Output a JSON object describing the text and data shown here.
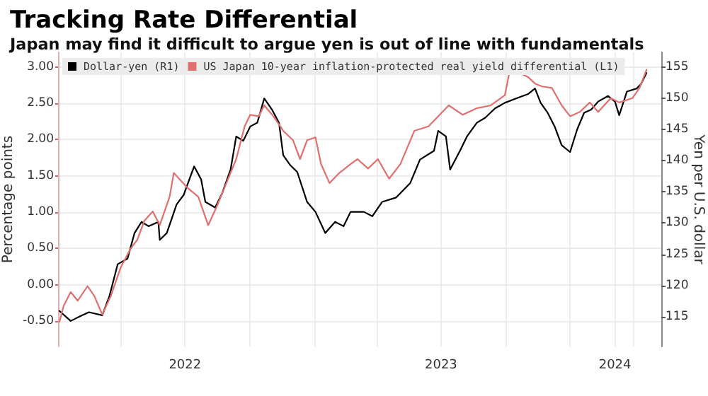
{
  "chart_data": {
    "type": "line",
    "title": "Tracking Rate Differential",
    "subtitle": "Japan may find it difficult to argue yen is out of line with fundamentals",
    "ylabel": "Percentage points",
    "y2label": "Yen per U.S. dollar",
    "xlim": [
      "2022-01-01",
      "2024-05-10"
    ],
    "xticks": [
      {
        "value": "2022-04-01",
        "label": null
      },
      {
        "value": "2022-07-01",
        "label": "2022"
      },
      {
        "value": "2022-10-01",
        "label": null
      },
      {
        "value": "2023-01-01",
        "label": null
      },
      {
        "value": "2023-04-01",
        "label": null
      },
      {
        "value": "2023-07-01",
        "label": "2023"
      },
      {
        "value": "2023-10-01",
        "label": null
      },
      {
        "value": "2024-01-01",
        "label": null
      },
      {
        "value": "2024-03-05",
        "label": "2024"
      },
      {
        "value": "2024-04-01",
        "label": null
      }
    ],
    "ylim": [
      -0.85,
      3.2
    ],
    "yticks": [
      {
        "value": -0.5,
        "label": "-0.50"
      },
      {
        "value": 0,
        "label": "0.00"
      },
      {
        "value": 0.5,
        "label": "0.50"
      },
      {
        "value": 1,
        "label": "1.00"
      },
      {
        "value": 1.5,
        "label": "1.50"
      },
      {
        "value": 2,
        "label": "2.00"
      },
      {
        "value": 2.5,
        "label": "2.50"
      },
      {
        "value": 3,
        "label": "3.00"
      }
    ],
    "y2lim": [
      110.2,
      157.4
    ],
    "y2ticks": [
      115,
      120,
      125,
      130,
      135,
      140,
      145,
      150,
      155
    ],
    "grid": true,
    "legend": "top left",
    "marker": "none",
    "line_style": "solid",
    "series": [
      {
        "name": "Dollar-yen (R1)",
        "color": "#000000",
        "axis": "y2",
        "x": [
          "2022-01-03",
          "2022-01-19",
          "2022-02-04",
          "2022-02-14",
          "2022-03-05",
          "2022-03-15",
          "2022-03-27",
          "2022-04-10",
          "2022-04-20",
          "2022-04-30",
          "2022-05-10",
          "2022-05-24",
          "2022-05-26",
          "2022-06-05",
          "2022-06-19",
          "2022-06-29",
          "2022-07-14",
          "2022-07-24",
          "2022-07-30",
          "2022-08-13",
          "2022-08-23",
          "2022-09-04",
          "2022-09-12",
          "2022-09-22",
          "2022-10-02",
          "2022-10-12",
          "2022-10-22",
          "2022-11-02",
          "2022-11-12",
          "2022-11-18",
          "2022-11-28",
          "2022-12-08",
          "2022-12-22",
          "2023-01-03",
          "2023-01-17",
          "2023-01-31",
          "2023-02-12",
          "2023-02-22",
          "2023-03-13",
          "2023-03-25",
          "2023-04-08",
          "2023-04-28",
          "2023-05-18",
          "2023-06-01",
          "2023-06-21",
          "2023-06-27",
          "2023-07-08",
          "2023-07-14",
          "2023-07-28",
          "2023-08-07",
          "2023-08-21",
          "2023-09-02",
          "2023-09-16",
          "2023-09-30",
          "2023-10-16",
          "2023-11-02",
          "2023-11-12",
          "2023-11-20",
          "2023-11-30",
          "2023-12-10",
          "2023-12-20",
          "2024-01-01",
          "2024-01-11",
          "2024-01-21",
          "2024-01-31",
          "2024-02-10",
          "2024-02-24",
          "2024-03-05",
          "2024-03-11",
          "2024-03-22",
          "2024-04-05",
          "2024-04-11",
          "2024-04-19"
        ],
        "values": [
          115.9,
          114.3,
          115.2,
          115.7,
          115.2,
          118.2,
          123.4,
          124.3,
          128.4,
          130.2,
          129.5,
          130.2,
          127.3,
          128.4,
          133,
          134.5,
          139.1,
          137,
          133.4,
          132.5,
          134.8,
          138.6,
          143.9,
          143.2,
          145.5,
          146.1,
          150,
          148.2,
          146.1,
          140.9,
          139.3,
          138.2,
          133.4,
          131.8,
          128.4,
          130.2,
          129.5,
          131.8,
          131.8,
          131.1,
          133.4,
          134.1,
          136.4,
          140.2,
          141.6,
          144.8,
          143.9,
          138.6,
          141.6,
          143.9,
          146.1,
          146.9,
          148.4,
          149.3,
          150,
          150.7,
          151.6,
          149.3,
          147.7,
          145.5,
          142.5,
          141.4,
          145,
          147.7,
          148.2,
          149.5,
          150.4,
          149.5,
          147.3,
          151.1,
          151.6,
          152.3,
          154.1
        ]
      },
      {
        "name": "US Japan 10-year inflation-protected real yield differential (L1)",
        "color": "#e07070",
        "x": [
          "2022-01-03",
          "2022-01-09",
          "2022-01-19",
          "2022-01-29",
          "2022-02-12",
          "2022-02-22",
          "2022-03-05",
          "2022-03-17",
          "2022-03-31",
          "2022-04-14",
          "2022-04-24",
          "2022-05-04",
          "2022-05-16",
          "2022-05-26",
          "2022-06-09",
          "2022-06-15",
          "2022-07-04",
          "2022-07-20",
          "2022-08-03",
          "2022-08-15",
          "2022-08-29",
          "2022-09-12",
          "2022-09-24",
          "2022-10-02",
          "2022-10-14",
          "2022-10-22",
          "2022-11-04",
          "2022-11-18",
          "2022-12-02",
          "2022-12-12",
          "2022-12-22",
          "2023-01-03",
          "2023-01-11",
          "2023-01-23",
          "2023-02-06",
          "2023-02-22",
          "2023-03-04",
          "2023-03-19",
          "2023-04-02",
          "2023-04-18",
          "2023-05-04",
          "2023-05-24",
          "2023-06-13",
          "2023-06-27",
          "2023-07-12",
          "2023-08-01",
          "2023-08-21",
          "2023-09-10",
          "2023-09-30",
          "2023-10-06",
          "2023-10-20",
          "2023-11-02",
          "2023-11-12",
          "2023-11-22",
          "2023-12-06",
          "2023-12-20",
          "2024-01-01",
          "2024-01-15",
          "2024-01-29",
          "2024-02-10",
          "2024-02-28",
          "2024-03-11",
          "2024-03-30",
          "2024-04-09",
          "2024-04-19"
        ],
        "values": [
          -0.51,
          -0.29,
          -0.1,
          -0.22,
          -0.02,
          -0.16,
          -0.41,
          -0.16,
          0.23,
          0.49,
          0.62,
          0.88,
          1.01,
          0.82,
          1.21,
          1.54,
          1.34,
          1.21,
          0.82,
          1.07,
          1.4,
          1.73,
          2.18,
          2.34,
          2.32,
          2.47,
          2.32,
          2.12,
          1.99,
          1.73,
          1.99,
          2.03,
          1.66,
          1.4,
          1.54,
          1.66,
          1.73,
          1.6,
          1.73,
          1.46,
          1.66,
          2.12,
          2.18,
          2.32,
          2.47,
          2.34,
          2.43,
          2.47,
          2.61,
          2.9,
          2.92,
          2.86,
          2.77,
          2.73,
          2.71,
          2.47,
          2.32,
          2.38,
          2.51,
          2.38,
          2.57,
          2.51,
          2.57,
          2.71,
          2.96
        ]
      }
    ]
  }
}
